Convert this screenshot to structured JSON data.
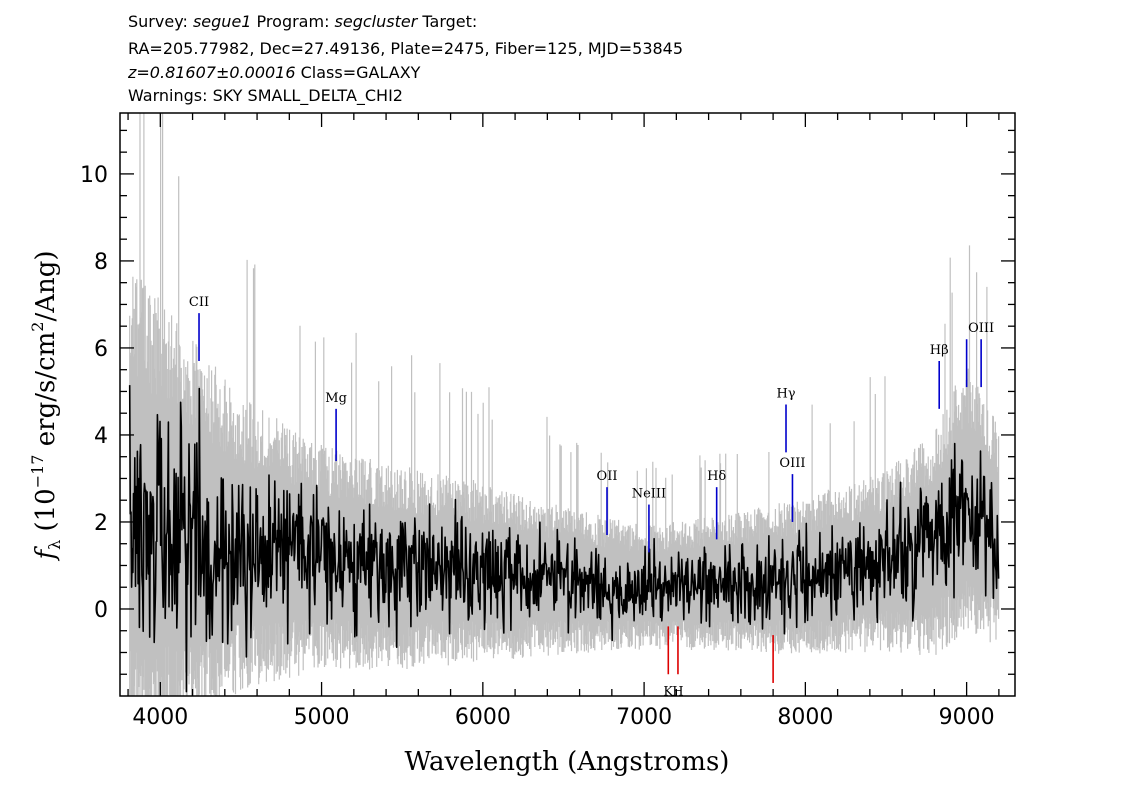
{
  "header": {
    "line1": {
      "survey_label": "Survey: ",
      "survey": "segue1",
      "program_label": " Program: ",
      "program": "segcluster",
      "target_label": " Target:"
    },
    "line2": "RA=205.77982, Dec=27.49136, Plate=2475, Fiber=125, MJD=53845",
    "line3": {
      "redshift": "z=0.81607±0.00016",
      "class": " Class=GALAXY"
    },
    "line4": "Warnings: SKY SMALL_DELTA_CHI2"
  },
  "chart_data": {
    "type": "line",
    "xlabel": "Wavelength (Angstroms)",
    "ylabel": {
      "prefix": "f",
      "sub": "λ",
      "main": " (10",
      "exp1": "−17",
      "mid": " erg/s/cm",
      "exp2": "2",
      "end": "/Ang)"
    },
    "xlim": [
      3750,
      9300
    ],
    "ylim": [
      -2.0,
      11.4
    ],
    "x_ticks": [
      4000,
      5000,
      6000,
      7000,
      8000,
      9000
    ],
    "x_tick_labels": [
      "4000",
      "5000",
      "6000",
      "7000",
      "8000",
      "9000"
    ],
    "y_ticks": [
      0,
      2,
      4,
      6,
      8,
      10
    ],
    "y_tick_labels": [
      "0",
      "2",
      "4",
      "6",
      "8",
      "10"
    ],
    "grid": false,
    "series": [
      {
        "role": "flux-noise-envelope",
        "color": "#c0c0c0"
      },
      {
        "role": "flux",
        "color": "#000000"
      }
    ],
    "spectrum_trend": {
      "x": [
        3800,
        4000,
        4500,
        5000,
        5500,
        6000,
        6500,
        7000,
        7500,
        8000,
        8500,
        8800,
        9000,
        9200
      ],
      "y": [
        2.2,
        1.9,
        1.5,
        1.2,
        0.95,
        0.85,
        0.65,
        0.5,
        0.6,
        0.75,
        1.1,
        1.5,
        2.6,
        1.6
      ],
      "noise_envelope": [
        4.5,
        4.0,
        2.6,
        2.0,
        1.8,
        1.6,
        1.3,
        1.1,
        1.2,
        1.4,
        1.6,
        2.0,
        2.4,
        2.0
      ]
    },
    "emission_lines": [
      {
        "label": "CII",
        "x": 4240,
        "y1": 5.7,
        "y2": 6.8
      },
      {
        "label": "Mg",
        "x": 5090,
        "y1": 3.4,
        "y2": 4.6
      },
      {
        "label": "OII",
        "x": 6770,
        "y1": 1.7,
        "y2": 2.8
      },
      {
        "label": "NeIII",
        "x": 7030,
        "y1": 1.3,
        "y2": 2.4
      },
      {
        "label": "Hδ",
        "x": 7450,
        "y1": 1.6,
        "y2": 2.8
      },
      {
        "label": "Hγ",
        "x": 7880,
        "y1": 3.6,
        "y2": 4.7
      },
      {
        "label": "OIII",
        "x": 7920,
        "y1": 2.0,
        "y2": 3.1
      },
      {
        "label": "Hβ",
        "x": 8830,
        "y1": 4.6,
        "y2": 5.7
      },
      {
        "label": "",
        "x": 9000,
        "y1": 5.1,
        "y2": 6.2
      },
      {
        "label": "OIII",
        "x": 9090,
        "y1": 5.1,
        "y2": 6.2
      }
    ],
    "absorption_lines": [
      {
        "label": "K",
        "x": 7150,
        "y1": -1.5,
        "y2": -0.4
      },
      {
        "label": "H",
        "x": 7210,
        "y1": -1.5,
        "y2": -0.4
      },
      {
        "label": "",
        "x": 7800,
        "y1": -1.7,
        "y2": -0.6
      }
    ],
    "colors": {
      "emission": "#0000cc",
      "absorption": "#dd0000",
      "noise": "#c0c0c0",
      "flux": "#000000"
    }
  }
}
